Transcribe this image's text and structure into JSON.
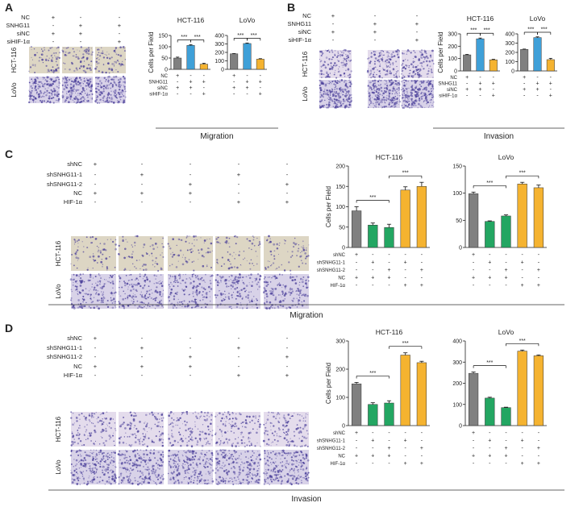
{
  "panels": [
    {
      "letter": "A",
      "footer": "Migration",
      "variant": "AB",
      "micro": "mig",
      "treat_rows": [
        {
          "label": "NC",
          "marks": [
            "+",
            "-",
            "-"
          ]
        },
        {
          "label": "SNHG11",
          "marks": [
            "-",
            "+",
            "+"
          ]
        },
        {
          "label": "siNC",
          "marks": [
            "+",
            "+",
            "-"
          ]
        },
        {
          "label": "siHIF-1α",
          "marks": [
            "-",
            "-",
            "+"
          ]
        }
      ],
      "row_labels": [
        "HCT-116",
        "LoVo"
      ]
    },
    {
      "letter": "B",
      "footer": "Invasion",
      "variant": "AB",
      "micro": "inv",
      "treat_rows": [
        {
          "label": "NC",
          "marks": [
            "+",
            "-",
            "-"
          ]
        },
        {
          "label": "SNHG11",
          "marks": [
            "-",
            "+",
            "+"
          ]
        },
        {
          "label": "siNC",
          "marks": [
            "+",
            "+",
            "-"
          ]
        },
        {
          "label": "siHIF-1α",
          "marks": [
            "-",
            "-",
            "+"
          ]
        }
      ],
      "row_labels": [
        "HCT-116",
        "LoVo"
      ]
    },
    {
      "letter": "C",
      "footer": "Migration",
      "variant": "CD",
      "micro": "mig",
      "treat_rows": [
        {
          "label": "shNC",
          "marks": [
            "+",
            "-",
            "-",
            "-",
            "-"
          ]
        },
        {
          "label": "shSNHG11-1",
          "marks": [
            "-",
            "+",
            "-",
            "+",
            "-"
          ]
        },
        {
          "label": "shSNHG11-2",
          "marks": [
            "-",
            "-",
            "+",
            "-",
            "+"
          ]
        },
        {
          "label": "NC",
          "marks": [
            "+",
            "+",
            "+",
            "-",
            "-"
          ]
        },
        {
          "label": "HIF-1α",
          "marks": [
            "-",
            "-",
            "-",
            "+",
            "+"
          ]
        }
      ],
      "row_labels": [
        "HCT-116",
        "LoVo"
      ]
    },
    {
      "letter": "D",
      "footer": "Invasion",
      "variant": "CD",
      "micro": "inv",
      "treat_rows": [
        {
          "label": "shNC",
          "marks": [
            "+",
            "-",
            "-",
            "-",
            "-"
          ]
        },
        {
          "label": "shSNHG11-1",
          "marks": [
            "-",
            "+",
            "-",
            "+",
            "-"
          ]
        },
        {
          "label": "shSNHG11-2",
          "marks": [
            "-",
            "-",
            "+",
            "-",
            "+"
          ]
        },
        {
          "label": "NC",
          "marks": [
            "+",
            "+",
            "+",
            "-",
            "-"
          ]
        },
        {
          "label": "HIF-1α",
          "marks": [
            "-",
            "-",
            "-",
            "+",
            "+"
          ]
        }
      ],
      "row_labels": [
        "HCT-116",
        "LoVo"
      ]
    }
  ],
  "chart_data": [
    {
      "panel": "A",
      "cell": "HCT-116",
      "type": "bar",
      "title": "HCT-116",
      "ylabel": "Cells per Field",
      "ylim": [
        0,
        150
      ],
      "yticks": [
        0,
        50,
        100,
        150
      ],
      "values": [
        50,
        106,
        23
      ],
      "errors": [
        4,
        3,
        4
      ],
      "colors": [
        "#808080",
        "#3fa0d8",
        "#f5b330"
      ],
      "treat_labels": [
        "NC",
        "SNHG11",
        "siNC",
        "siHIF-1α"
      ],
      "treat_marks": [
        [
          "+",
          "-",
          "-"
        ],
        [
          "-",
          "+",
          "+"
        ],
        [
          "+",
          "+",
          "-"
        ],
        [
          "-",
          "-",
          "+"
        ]
      ],
      "sig": [
        "***",
        "***"
      ]
    },
    {
      "panel": "A",
      "cell": "LoVo",
      "type": "bar",
      "title": "LoVo",
      "ylabel": "",
      "ylim": [
        0,
        400
      ],
      "yticks": [
        0,
        100,
        200,
        300,
        400
      ],
      "values": [
        183,
        305,
        120
      ],
      "errors": [
        3,
        6,
        6
      ],
      "colors": [
        "#808080",
        "#3fa0d8",
        "#f5b330"
      ],
      "treat_labels": [],
      "treat_marks": [
        [
          "+",
          "-",
          "-"
        ],
        [
          "-",
          "+",
          "+"
        ],
        [
          "+",
          "+",
          "-"
        ],
        [
          "-",
          "-",
          "+"
        ]
      ],
      "sig": [
        "***",
        "***"
      ]
    },
    {
      "panel": "B",
      "cell": "HCT-116",
      "type": "bar",
      "title": "HCT-116",
      "ylabel": "Cells per Field",
      "ylim": [
        0,
        300
      ],
      "yticks": [
        0,
        100,
        200,
        300
      ],
      "values": [
        130,
        260,
        90
      ],
      "errors": [
        4,
        6,
        4
      ],
      "colors": [
        "#808080",
        "#3fa0d8",
        "#f5b330"
      ],
      "treat_labels": [
        "NC",
        "SNHG11",
        "siNC",
        "siHIF-1α"
      ],
      "treat_marks": [
        [
          "+",
          "-",
          "-"
        ],
        [
          "-",
          "+",
          "+"
        ],
        [
          "+",
          "+",
          "-"
        ],
        [
          "-",
          "-",
          "+"
        ]
      ],
      "sig": [
        "***",
        "***"
      ]
    },
    {
      "panel": "B",
      "cell": "LoVo",
      "type": "bar",
      "title": "LoVo",
      "ylabel": "",
      "ylim": [
        0,
        400
      ],
      "yticks": [
        0,
        100,
        200,
        300,
        400
      ],
      "values": [
        232,
        360,
        122
      ],
      "errors": [
        4,
        8,
        14
      ],
      "colors": [
        "#808080",
        "#3fa0d8",
        "#f5b330"
      ],
      "treat_labels": [],
      "treat_marks": [
        [
          "+",
          "-",
          "-"
        ],
        [
          "-",
          "+",
          "+"
        ],
        [
          "+",
          "+",
          "-"
        ],
        [
          "-",
          "-",
          "+"
        ]
      ],
      "sig": [
        "***",
        "***"
      ]
    },
    {
      "panel": "C",
      "cell": "HCT-116",
      "type": "bar",
      "title": "HCT-116",
      "ylabel": "Cells per Field",
      "ylim": [
        0,
        200
      ],
      "yticks": [
        0,
        50,
        100,
        150,
        200
      ],
      "values": [
        90,
        55,
        49,
        141,
        150
      ],
      "errors": [
        10,
        5,
        8,
        8,
        10
      ],
      "colors": [
        "#808080",
        "#23a662",
        "#23a662",
        "#f5b330",
        "#f5b330"
      ],
      "treat_labels": [
        "shNC",
        "shSNHG11-1",
        "shSNHG11-2",
        "NC",
        "HIF-1α"
      ],
      "treat_marks": [
        [
          "+",
          "-",
          "-",
          "-",
          "-"
        ],
        [
          "-",
          "+",
          "-",
          "+",
          "-"
        ],
        [
          "-",
          "-",
          "+",
          "-",
          "+"
        ],
        [
          "+",
          "+",
          "+",
          "-",
          "-"
        ],
        [
          "-",
          "-",
          "-",
          "+",
          "+"
        ]
      ],
      "sig": [
        "***",
        "***"
      ]
    },
    {
      "panel": "C",
      "cell": "LoVo",
      "type": "bar",
      "title": "LoVo",
      "ylabel": "",
      "ylim": [
        0,
        150
      ],
      "yticks": [
        0,
        50,
        100,
        150
      ],
      "values": [
        99,
        48,
        58,
        117,
        110
      ],
      "errors": [
        3,
        1,
        2,
        3,
        5
      ],
      "colors": [
        "#808080",
        "#23a662",
        "#23a662",
        "#f5b330",
        "#f5b330"
      ],
      "treat_labels": [],
      "treat_marks": [
        [
          "+",
          "-",
          "-",
          "-",
          "-"
        ],
        [
          "-",
          "+",
          "-",
          "+",
          "-"
        ],
        [
          "-",
          "-",
          "+",
          "-",
          "+"
        ],
        [
          "+",
          "+",
          "+",
          "-",
          "-"
        ],
        [
          "-",
          "-",
          "-",
          "+",
          "+"
        ]
      ],
      "sig": [
        "***",
        "***"
      ]
    },
    {
      "panel": "D",
      "cell": "HCT-116",
      "type": "bar",
      "title": "HCT-116",
      "ylabel": "Cells per Field",
      "ylim": [
        0,
        300
      ],
      "yticks": [
        0,
        100,
        200,
        300
      ],
      "values": [
        148,
        75,
        80,
        250,
        223
      ],
      "errors": [
        5,
        6,
        8,
        8,
        5
      ],
      "colors": [
        "#808080",
        "#23a662",
        "#23a662",
        "#f5b330",
        "#f5b330"
      ],
      "treat_labels": [
        "shNC",
        "shSNHG11-1",
        "shSNHG11-2",
        "NC",
        "HIF-1α"
      ],
      "treat_marks": [
        [
          "+",
          "-",
          "-",
          "-",
          "-"
        ],
        [
          "-",
          "+",
          "-",
          "+",
          "-"
        ],
        [
          "-",
          "-",
          "+",
          "-",
          "+"
        ],
        [
          "+",
          "+",
          "+",
          "-",
          "-"
        ],
        [
          "-",
          "-",
          "-",
          "+",
          "+"
        ]
      ],
      "sig": [
        "***",
        "***"
      ]
    },
    {
      "panel": "D",
      "cell": "LoVo",
      "type": "bar",
      "title": "LoVo",
      "ylabel": "",
      "ylim": [
        0,
        400
      ],
      "yticks": [
        0,
        100,
        200,
        300,
        400
      ],
      "values": [
        247,
        130,
        85,
        352,
        330
      ],
      "errors": [
        6,
        4,
        2,
        5,
        4
      ],
      "colors": [
        "#808080",
        "#23a662",
        "#23a662",
        "#f5b330",
        "#f5b330"
      ],
      "treat_labels": [],
      "treat_marks": [
        [
          "+",
          "-",
          "-",
          "-",
          "-"
        ],
        [
          "-",
          "+",
          "-",
          "+",
          "-"
        ],
        [
          "-",
          "-",
          "+",
          "-",
          "+"
        ],
        [
          "+",
          "+",
          "+",
          "-",
          "-"
        ],
        [
          "-",
          "-",
          "-",
          "+",
          "+"
        ]
      ],
      "sig": [
        "***",
        "***"
      ]
    }
  ],
  "palette": {
    "micro_bg_mig": "#ddd6c4",
    "micro_bg_inv": "#e4dcec",
    "cell_color": "#4a3f9a",
    "axis": "#222222"
  }
}
